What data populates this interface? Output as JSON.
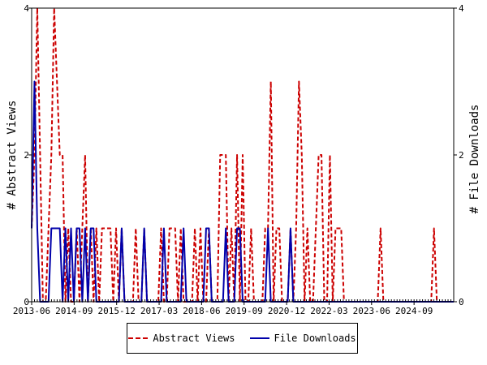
{
  "chart_data": {
    "type": "line",
    "title": "",
    "ylabel_left": "# Abstract Views",
    "ylabel_right": "# File Downloads",
    "ylim_left": [
      0,
      4
    ],
    "ylim_right": [
      0,
      4
    ],
    "y_ticks_left": [
      "0",
      "2",
      "4"
    ],
    "y_ticks_right": [
      "0",
      "2",
      "4"
    ],
    "x_tick_labels": [
      "2013-06",
      "2014-09",
      "2015-12",
      "2017-03",
      "2018-06",
      "2019-09",
      "2020-12",
      "2022-03",
      "2023-06",
      "2024-09"
    ],
    "x_start": "2013-06",
    "x_end": "2025-11",
    "legend_position": "bottom",
    "grid": false,
    "series": [
      {
        "name": "Abstract Views",
        "color": "#cc0000",
        "style": "dashed",
        "values": [
          1,
          2,
          4,
          2,
          0,
          0,
          1,
          2,
          4,
          3,
          2,
          2,
          0,
          1,
          0,
          0,
          1,
          0,
          1,
          2,
          0,
          1,
          0,
          1,
          0,
          1,
          1,
          1,
          1,
          0,
          1,
          0,
          1,
          0,
          0,
          0,
          0,
          1,
          0,
          0,
          1,
          0,
          0,
          0,
          0,
          0,
          1,
          0,
          0,
          1,
          1,
          1,
          0,
          1,
          0,
          0,
          0,
          0,
          1,
          0,
          1,
          0,
          0,
          1,
          0,
          0,
          0,
          2,
          2,
          2,
          0,
          1,
          0,
          2,
          0,
          2,
          0,
          0,
          1,
          0,
          0,
          0,
          0,
          1,
          1,
          3,
          0,
          1,
          1,
          0,
          0,
          0,
          1,
          0,
          1,
          3,
          2,
          0,
          1,
          0,
          0,
          1,
          2,
          2,
          0,
          0,
          2,
          0,
          1,
          1,
          1,
          0,
          0,
          0,
          0,
          0,
          0,
          0,
          0,
          0,
          0,
          0,
          0,
          0,
          1,
          0,
          0,
          0,
          0,
          0,
          0,
          0,
          0,
          0,
          0,
          0,
          0,
          0,
          0,
          0,
          0,
          0,
          0,
          1,
          0,
          0,
          0,
          0,
          0,
          0,
          0
        ]
      },
      {
        "name": "File Downloads",
        "color": "#0000aa",
        "style": "solid",
        "values": [
          1,
          3,
          1,
          0,
          0,
          0,
          0,
          1,
          1,
          1,
          1,
          0,
          1,
          0,
          1,
          0,
          1,
          1,
          0,
          1,
          0,
          1,
          1,
          0,
          0,
          0,
          0,
          0,
          0,
          0,
          0,
          0,
          1,
          0,
          0,
          0,
          0,
          0,
          0,
          0,
          1,
          0,
          0,
          0,
          0,
          0,
          0,
          1,
          0,
          0,
          0,
          0,
          0,
          0,
          1,
          0,
          0,
          0,
          0,
          0,
          0,
          0,
          1,
          1,
          0,
          0,
          0,
          0,
          0,
          1,
          0,
          0,
          0,
          1,
          1,
          0,
          0,
          0,
          0,
          0,
          0,
          0,
          0,
          0,
          1,
          0,
          0,
          0,
          0,
          0,
          0,
          0,
          1,
          0,
          0,
          0,
          0,
          0,
          0,
          0,
          0,
          0,
          0,
          0,
          0,
          0,
          0,
          0,
          0,
          0,
          0,
          0,
          0,
          0,
          0,
          0,
          0,
          0,
          0,
          0,
          0,
          0,
          0,
          0,
          0,
          0,
          0,
          0,
          0,
          0,
          0,
          0,
          0,
          0,
          0,
          0,
          0,
          0,
          0,
          0,
          0,
          0,
          0,
          0,
          0,
          0,
          0,
          0,
          0,
          0,
          0
        ]
      }
    ]
  }
}
